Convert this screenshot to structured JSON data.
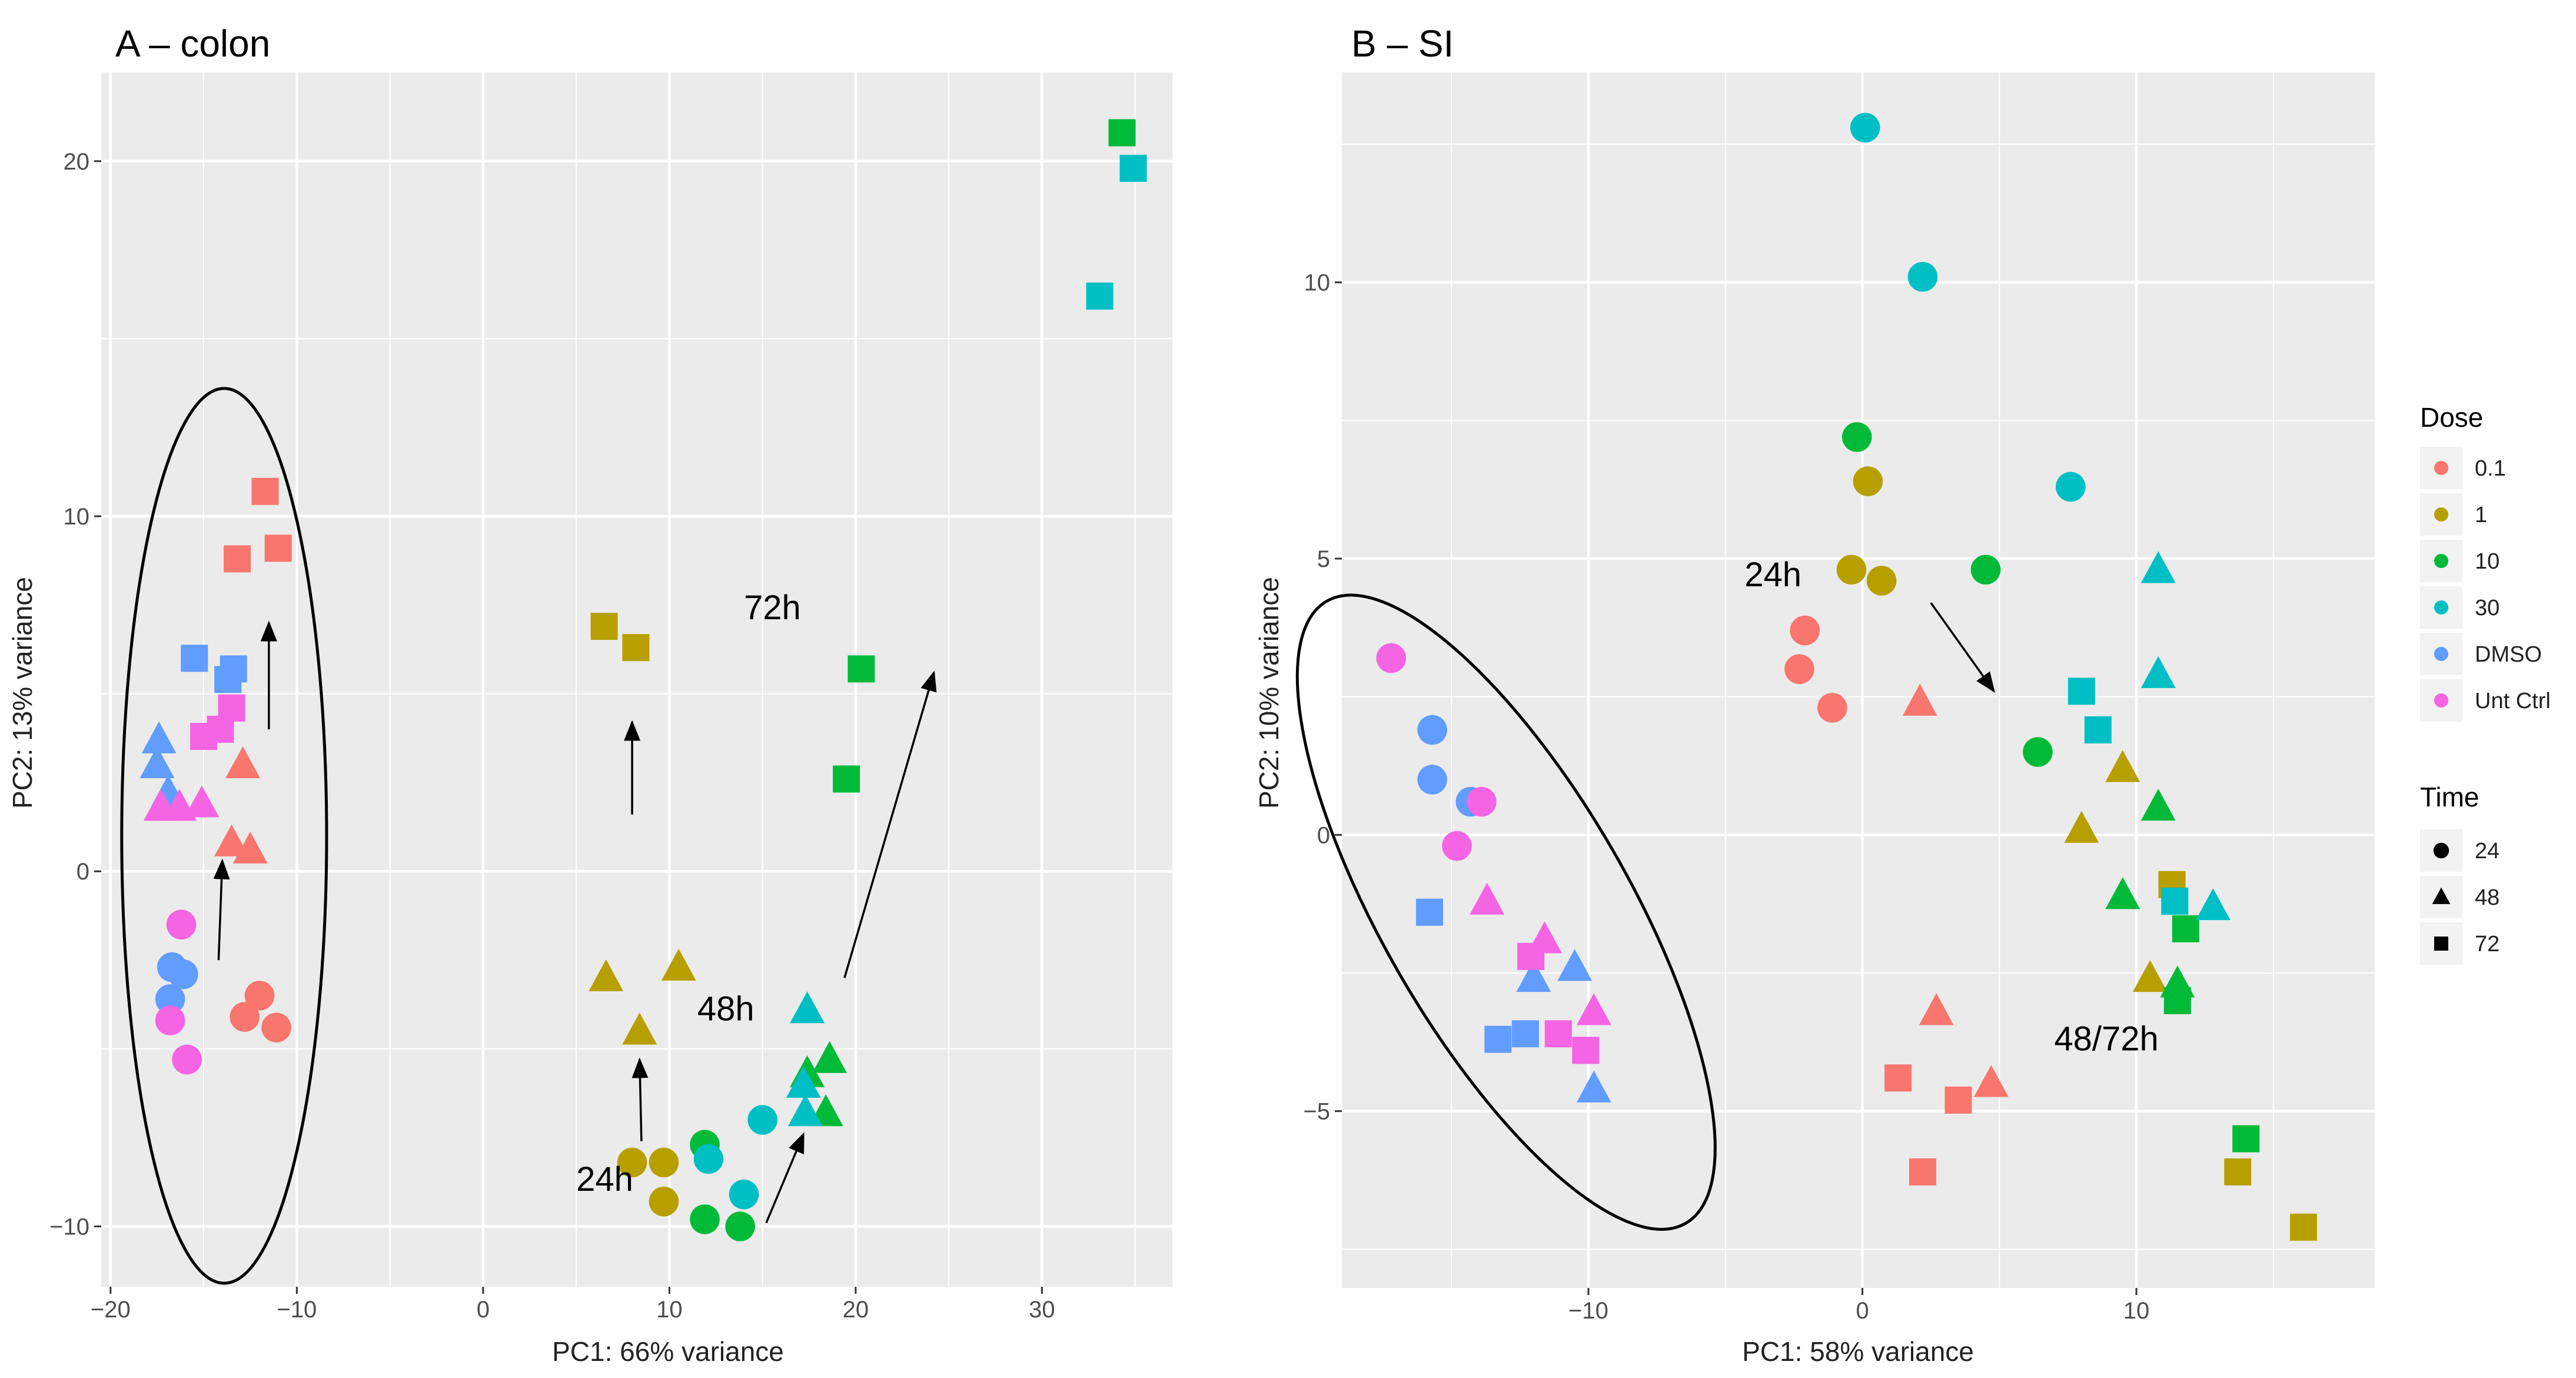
{
  "chart_data": [
    {
      "type": "scatter",
      "title": "A – colon",
      "xlabel": "PC1: 66% variance",
      "ylabel": "PC2: 13% variance",
      "xlim": [
        -20.5,
        37
      ],
      "ylim": [
        -11.7,
        22.5
      ],
      "xticks": [
        -20,
        -10,
        0,
        10,
        20,
        30
      ],
      "yticks": [
        -10,
        0,
        10,
        20
      ],
      "xtick_labels": [
        "−20",
        "−10",
        "0",
        "10",
        "20",
        "30"
      ],
      "ytick_labels": [
        "−10",
        "0",
        "10",
        "20"
      ],
      "points": [
        {
          "x": -11.7,
          "y": 10.7,
          "dose": "0.1",
          "time": "72"
        },
        {
          "x": -13.2,
          "y": 8.8,
          "dose": "0.1",
          "time": "72"
        },
        {
          "x": -11.0,
          "y": 9.1,
          "dose": "0.1",
          "time": "72"
        },
        {
          "x": -12.9,
          "y": 3.0,
          "dose": "0.1",
          "time": "48"
        },
        {
          "x": -13.5,
          "y": 0.8,
          "dose": "0.1",
          "time": "48"
        },
        {
          "x": -12.5,
          "y": 0.6,
          "dose": "0.1",
          "time": "48"
        },
        {
          "x": -12.0,
          "y": -3.5,
          "dose": "0.1",
          "time": "24"
        },
        {
          "x": -12.8,
          "y": -4.1,
          "dose": "0.1",
          "time": "24"
        },
        {
          "x": -11.1,
          "y": -4.4,
          "dose": "0.1",
          "time": "24"
        },
        {
          "x": -15.5,
          "y": 6.0,
          "dose": "DMSO",
          "time": "72"
        },
        {
          "x": -13.7,
          "y": 5.4,
          "dose": "DMSO",
          "time": "72"
        },
        {
          "x": -13.4,
          "y": 5.7,
          "dose": "DMSO",
          "time": "72"
        },
        {
          "x": -17.4,
          "y": 3.7,
          "dose": "DMSO",
          "time": "48"
        },
        {
          "x": -17.5,
          "y": 3.0,
          "dose": "DMSO",
          "time": "48"
        },
        {
          "x": -16.9,
          "y": 2.2,
          "dose": "DMSO",
          "time": "48"
        },
        {
          "x": -16.7,
          "y": -2.7,
          "dose": "DMSO",
          "time": "24"
        },
        {
          "x": -16.1,
          "y": -2.9,
          "dose": "DMSO",
          "time": "24"
        },
        {
          "x": -16.8,
          "y": -3.6,
          "dose": "DMSO",
          "time": "24"
        },
        {
          "x": -13.5,
          "y": 4.6,
          "dose": "Unt Ctrl",
          "time": "72"
        },
        {
          "x": -14.1,
          "y": 4.0,
          "dose": "Unt Ctrl",
          "time": "72"
        },
        {
          "x": -15.0,
          "y": 3.8,
          "dose": "Unt Ctrl",
          "time": "72"
        },
        {
          "x": -17.3,
          "y": 1.8,
          "dose": "Unt Ctrl",
          "time": "48"
        },
        {
          "x": -16.3,
          "y": 1.8,
          "dose": "Unt Ctrl",
          "time": "48"
        },
        {
          "x": -15.1,
          "y": 1.9,
          "dose": "Unt Ctrl",
          "time": "48"
        },
        {
          "x": -16.2,
          "y": -1.5,
          "dose": "Unt Ctrl",
          "time": "24"
        },
        {
          "x": -16.8,
          "y": -4.2,
          "dose": "Unt Ctrl",
          "time": "24"
        },
        {
          "x": -15.9,
          "y": -5.3,
          "dose": "Unt Ctrl",
          "time": "24"
        },
        {
          "x": 6.5,
          "y": 6.9,
          "dose": "1",
          "time": "72"
        },
        {
          "x": 8.2,
          "y": 6.3,
          "dose": "1",
          "time": "72"
        },
        {
          "x": 6.6,
          "y": -3.0,
          "dose": "1",
          "time": "48"
        },
        {
          "x": 10.5,
          "y": -2.7,
          "dose": "1",
          "time": "48"
        },
        {
          "x": 8.4,
          "y": -4.5,
          "dose": "1",
          "time": "48"
        },
        {
          "x": 8.0,
          "y": -8.2,
          "dose": "1",
          "time": "24"
        },
        {
          "x": 9.7,
          "y": -8.2,
          "dose": "1",
          "time": "24"
        },
        {
          "x": 9.7,
          "y": -9.3,
          "dose": "1",
          "time": "24"
        },
        {
          "x": 34.3,
          "y": 20.8,
          "dose": "10",
          "time": "72"
        },
        {
          "x": 20.3,
          "y": 5.7,
          "dose": "10",
          "time": "72"
        },
        {
          "x": 19.5,
          "y": 2.6,
          "dose": "10",
          "time": "72"
        },
        {
          "x": 18.6,
          "y": -5.3,
          "dose": "10",
          "time": "48"
        },
        {
          "x": 17.4,
          "y": -5.7,
          "dose": "10",
          "time": "48"
        },
        {
          "x": 18.4,
          "y": -6.8,
          "dose": "10",
          "time": "48"
        },
        {
          "x": 11.9,
          "y": -7.7,
          "dose": "10",
          "time": "24"
        },
        {
          "x": 11.9,
          "y": -9.8,
          "dose": "10",
          "time": "24"
        },
        {
          "x": 13.8,
          "y": -10.0,
          "dose": "10",
          "time": "24"
        },
        {
          "x": 34.9,
          "y": 19.8,
          "dose": "30",
          "time": "72"
        },
        {
          "x": 33.1,
          "y": 16.2,
          "dose": "30",
          "time": "72"
        },
        {
          "x": 17.4,
          "y": -3.9,
          "dose": "30",
          "time": "48"
        },
        {
          "x": 17.2,
          "y": -6.0,
          "dose": "30",
          "time": "48"
        },
        {
          "x": 17.3,
          "y": -6.8,
          "dose": "30",
          "time": "48"
        },
        {
          "x": 15.0,
          "y": -7.0,
          "dose": "30",
          "time": "24"
        },
        {
          "x": 12.1,
          "y": -8.1,
          "dose": "30",
          "time": "24"
        },
        {
          "x": 14.0,
          "y": -9.1,
          "dose": "30",
          "time": "24"
        }
      ],
      "annotations": [
        {
          "text": "72h",
          "x": 14.0,
          "y": 7.1
        },
        {
          "text": "48h",
          "x": 11.5,
          "y": -4.2
        },
        {
          "text": "24h",
          "x": 5.0,
          "y": -9.0
        }
      ],
      "arrows": [
        {
          "from": [
            -14.2,
            -2.5
          ],
          "to": [
            -14.0,
            0.3
          ]
        },
        {
          "from": [
            -11.5,
            4.0
          ],
          "to": [
            -11.5,
            7.0
          ]
        },
        {
          "from": [
            8.0,
            1.6
          ],
          "to": [
            8.0,
            4.2
          ]
        },
        {
          "from": [
            8.5,
            -7.6
          ],
          "to": [
            8.4,
            -5.3
          ]
        },
        {
          "from": [
            15.2,
            -9.9
          ],
          "to": [
            17.2,
            -7.4
          ]
        },
        {
          "from": [
            19.4,
            -3.0
          ],
          "to": [
            24.2,
            5.6
          ]
        }
      ],
      "ellipse": {
        "cx": -13.9,
        "cy": 1.0,
        "rx": 5.5,
        "ry": 12.6
      }
    },
    {
      "type": "scatter",
      "title": "B – SI",
      "xlabel": "PC1: 58% variance",
      "ylabel": "PC2: 10% variance",
      "xlim": [
        -19,
        18.7
      ],
      "ylim": [
        -8.2,
        13.8
      ],
      "xticks": [
        -10,
        0,
        10
      ],
      "yticks": [
        -5,
        0,
        5,
        10
      ],
      "xtick_labels": [
        "−10",
        "0",
        "10"
      ],
      "ytick_labels": [
        "−5",
        "0",
        "5",
        "10"
      ],
      "points": [
        {
          "x": -2.1,
          "y": 3.7,
          "dose": "0.1",
          "time": "24"
        },
        {
          "x": -2.3,
          "y": 3.0,
          "dose": "0.1",
          "time": "24"
        },
        {
          "x": -1.1,
          "y": 2.3,
          "dose": "0.1",
          "time": "24"
        },
        {
          "x": 2.1,
          "y": 2.4,
          "dose": "0.1",
          "time": "48"
        },
        {
          "x": 2.7,
          "y": -3.2,
          "dose": "0.1",
          "time": "48"
        },
        {
          "x": 4.7,
          "y": -4.5,
          "dose": "0.1",
          "time": "48"
        },
        {
          "x": 1.3,
          "y": -4.4,
          "dose": "0.1",
          "time": "72"
        },
        {
          "x": 3.5,
          "y": -4.8,
          "dose": "0.1",
          "time": "72"
        },
        {
          "x": 2.2,
          "y": -6.1,
          "dose": "0.1",
          "time": "72"
        },
        {
          "x": 0.2,
          "y": 6.4,
          "dose": "1",
          "time": "24"
        },
        {
          "x": -0.4,
          "y": 4.8,
          "dose": "1",
          "time": "24"
        },
        {
          "x": 0.7,
          "y": 4.6,
          "dose": "1",
          "time": "24"
        },
        {
          "x": 9.5,
          "y": 1.2,
          "dose": "1",
          "time": "48"
        },
        {
          "x": 8.0,
          "y": 0.1,
          "dose": "1",
          "time": "48"
        },
        {
          "x": 10.5,
          "y": -2.6,
          "dose": "1",
          "time": "48"
        },
        {
          "x": 11.3,
          "y": -0.9,
          "dose": "1",
          "time": "72"
        },
        {
          "x": 13.7,
          "y": -6.1,
          "dose": "1",
          "time": "72"
        },
        {
          "x": 16.1,
          "y": -7.1,
          "dose": "1",
          "time": "72"
        },
        {
          "x": -0.2,
          "y": 7.2,
          "dose": "10",
          "time": "24"
        },
        {
          "x": 4.5,
          "y": 4.8,
          "dose": "10",
          "time": "24"
        },
        {
          "x": 6.4,
          "y": 1.5,
          "dose": "10",
          "time": "24"
        },
        {
          "x": 10.8,
          "y": 0.5,
          "dose": "10",
          "time": "48"
        },
        {
          "x": 9.5,
          "y": -1.1,
          "dose": "10",
          "time": "48"
        },
        {
          "x": 11.5,
          "y": -2.7,
          "dose": "10",
          "time": "48"
        },
        {
          "x": 11.8,
          "y": -1.7,
          "dose": "10",
          "time": "72"
        },
        {
          "x": 11.5,
          "y": -3.0,
          "dose": "10",
          "time": "72"
        },
        {
          "x": 14.0,
          "y": -5.5,
          "dose": "10",
          "time": "72"
        },
        {
          "x": 0.1,
          "y": 12.8,
          "dose": "30",
          "time": "24"
        },
        {
          "x": 2.2,
          "y": 10.1,
          "dose": "30",
          "time": "24"
        },
        {
          "x": 7.6,
          "y": 6.3,
          "dose": "30",
          "time": "24"
        },
        {
          "x": 10.8,
          "y": 4.8,
          "dose": "30",
          "time": "48"
        },
        {
          "x": 10.8,
          "y": 2.9,
          "dose": "30",
          "time": "48"
        },
        {
          "x": 12.8,
          "y": -1.3,
          "dose": "30",
          "time": "48"
        },
        {
          "x": 8.0,
          "y": 2.6,
          "dose": "30",
          "time": "72"
        },
        {
          "x": 8.6,
          "y": 1.9,
          "dose": "30",
          "time": "72"
        },
        {
          "x": 11.4,
          "y": -1.2,
          "dose": "30",
          "time": "72"
        },
        {
          "x": -15.7,
          "y": 1.9,
          "dose": "DMSO",
          "time": "24"
        },
        {
          "x": -15.7,
          "y": 1.0,
          "dose": "DMSO",
          "time": "24"
        },
        {
          "x": -14.3,
          "y": 0.6,
          "dose": "DMSO",
          "time": "24"
        },
        {
          "x": -10.5,
          "y": -2.4,
          "dose": "DMSO",
          "time": "48"
        },
        {
          "x": -12.0,
          "y": -2.6,
          "dose": "DMSO",
          "time": "48"
        },
        {
          "x": -9.8,
          "y": -4.6,
          "dose": "DMSO",
          "time": "48"
        },
        {
          "x": -15.8,
          "y": -1.4,
          "dose": "DMSO",
          "time": "72"
        },
        {
          "x": -13.3,
          "y": -3.7,
          "dose": "DMSO",
          "time": "72"
        },
        {
          "x": -12.3,
          "y": -3.6,
          "dose": "DMSO",
          "time": "72"
        },
        {
          "x": -17.2,
          "y": 3.2,
          "dose": "Unt Ctrl",
          "time": "24"
        },
        {
          "x": -13.9,
          "y": 0.6,
          "dose": "Unt Ctrl",
          "time": "24"
        },
        {
          "x": -14.8,
          "y": -0.2,
          "dose": "Unt Ctrl",
          "time": "24"
        },
        {
          "x": -13.7,
          "y": -1.2,
          "dose": "Unt Ctrl",
          "time": "48"
        },
        {
          "x": -11.6,
          "y": -1.9,
          "dose": "Unt Ctrl",
          "time": "48"
        },
        {
          "x": -9.8,
          "y": -3.2,
          "dose": "Unt Ctrl",
          "time": "48"
        },
        {
          "x": -12.1,
          "y": -2.2,
          "dose": "Unt Ctrl",
          "time": "72"
        },
        {
          "x": -11.1,
          "y": -3.6,
          "dose": "Unt Ctrl",
          "time": "72"
        },
        {
          "x": -10.1,
          "y": -3.9,
          "dose": "Unt Ctrl",
          "time": "72"
        }
      ],
      "annotations": [
        {
          "text": "24h",
          "x": -4.3,
          "y": 4.5
        },
        {
          "text": "48/72h",
          "x": 7.0,
          "y": -3.9
        }
      ],
      "arrows": [
        {
          "from": [
            2.5,
            4.2
          ],
          "to": [
            4.8,
            2.6
          ]
        }
      ],
      "ellipse": {
        "cx": -13.0,
        "cy": -1.4,
        "rx": 4.5,
        "ry": 6.5,
        "rotation": -30
      }
    }
  ],
  "legend": {
    "dose_title": "Dose",
    "dose": [
      {
        "label": "0.1",
        "color": "#F8766D"
      },
      {
        "label": "1",
        "color": "#B79F00"
      },
      {
        "label": "10",
        "color": "#00BA38"
      },
      {
        "label": "30",
        "color": "#00BFC4"
      },
      {
        "label": "DMSO",
        "color": "#619CFF"
      },
      {
        "label": "Unt Ctrl",
        "color": "#F564E3"
      }
    ],
    "time_title": "Time",
    "time": [
      {
        "label": "24",
        "shape": "circle"
      },
      {
        "label": "48",
        "shape": "triangle"
      },
      {
        "label": "72",
        "shape": "square"
      }
    ]
  },
  "colors": {
    "panel_bg": "#EBEBEB",
    "grid": "#FFFFFF",
    "text_dark": "#000000"
  }
}
